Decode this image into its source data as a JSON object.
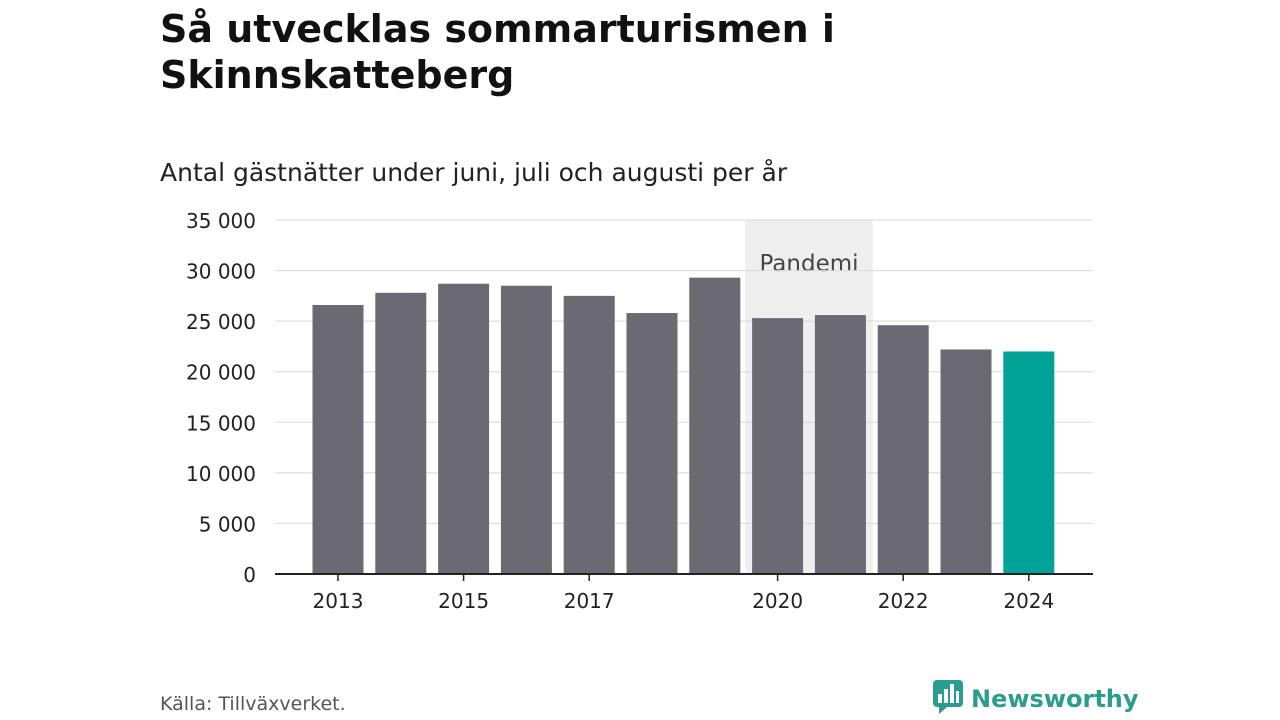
{
  "title": "Så utvecklas sommarturismen i Skinnskatteberg",
  "subtitle": "Antal gästnätter under juni, juli och augusti per år",
  "source": "Källa: Tillväxverket.",
  "brand": {
    "name": "Newsworthy",
    "icon": "newsworthy-logo-icon",
    "color": "#2a9d8f"
  },
  "colors": {
    "bar": "#6b6a72",
    "highlight": "#00a396",
    "shade": "#efefef"
  },
  "chart_data": {
    "type": "bar",
    "categories": [
      "2013",
      "2014",
      "2015",
      "2016",
      "2017",
      "2018",
      "2019",
      "2020",
      "2021",
      "2022",
      "2023",
      "2024"
    ],
    "values": [
      26600,
      27800,
      28700,
      28500,
      27500,
      25800,
      29300,
      25300,
      25600,
      24600,
      22200,
      22000
    ],
    "x_tick_labels": [
      "2013",
      "",
      "2015",
      "",
      "2017",
      "",
      "",
      "2020",
      "",
      "2022",
      "",
      "2024"
    ],
    "y_ticks": [
      0,
      5000,
      10000,
      15000,
      20000,
      25000,
      30000,
      35000
    ],
    "y_tick_labels": [
      "0",
      "5 000",
      "10 000",
      "15 000",
      "20 000",
      "25 000",
      "30 000",
      "35 000"
    ],
    "ylim": [
      0,
      35000
    ],
    "highlight_category": "2024",
    "annotation": {
      "label": "Pandemi",
      "from": "2020",
      "to": "2021"
    },
    "grid": true
  }
}
